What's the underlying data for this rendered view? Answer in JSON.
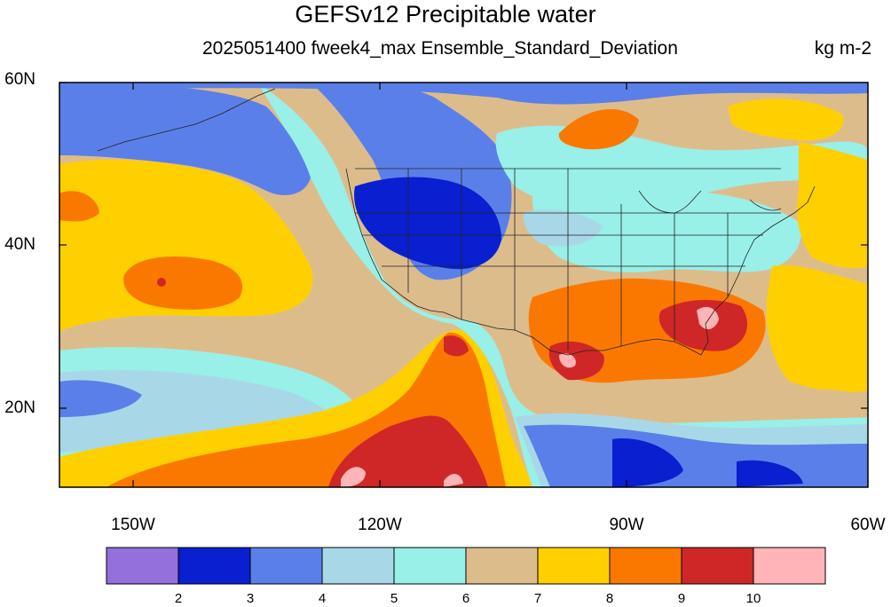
{
  "title": "GEFSv12 Precipitable water",
  "subtitle": "2025051400 fweek4_max Ensemble_Standard_Deviation",
  "units": "kg m-2",
  "map": {
    "lat_labels": [
      "60N",
      "40N",
      "20N"
    ],
    "lon_labels": [
      "150W",
      "120W",
      "90W",
      "60W"
    ],
    "lon_range": [
      -160,
      -60
    ],
    "lat_range": [
      10,
      60
    ]
  },
  "colorbar": {
    "levels": [
      "2",
      "3",
      "4",
      "5",
      "6",
      "7",
      "8",
      "9",
      "10"
    ],
    "colors": [
      "#9370db",
      "#0a1fcf",
      "#5b7fe8",
      "#a8d8e8",
      "#98f0e8",
      "#ddbc8c",
      "#ffd000",
      "#fa7800",
      "#cf2727",
      "#ffb4b8"
    ]
  }
}
